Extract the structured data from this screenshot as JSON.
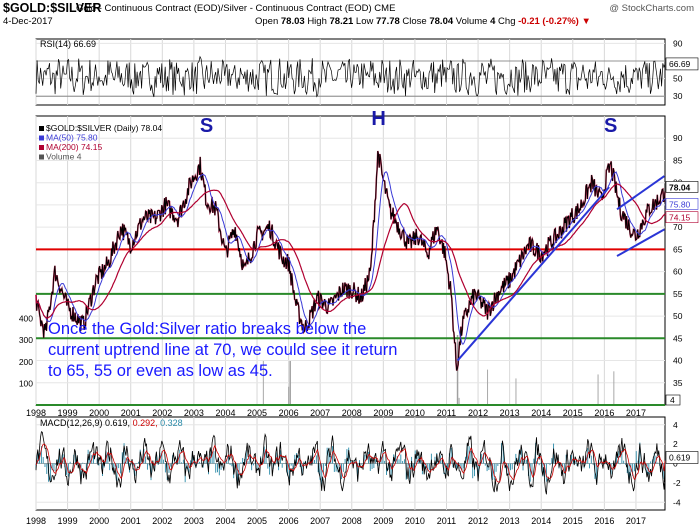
{
  "header": {
    "symbol": "$GOLD:$SILVER",
    "description": "Gold - Continuous Contract (EOD)/Silver - Continuous Contract (EOD) CME",
    "watermark": "@ StockCharts.com",
    "date": "4-Dec-2017",
    "open_label": "Open",
    "open": "78.03",
    "high_label": "High",
    "high": "78.21",
    "low_label": "Low",
    "low": "77.78",
    "close_label": "Close",
    "close": "78.04",
    "volume_label": "Volume",
    "volume": "4",
    "chg_label": "Chg",
    "chg": "-0.21 (-0.27%)",
    "chg_icon": "down-triangle-icon"
  },
  "chart_data": [
    {
      "type": "line",
      "panel": "rsi",
      "legend": "RSI(14) 66.69",
      "current_value_label": "66.69",
      "ylim": [
        20,
        95
      ],
      "yticks": [
        30,
        50,
        70,
        90
      ],
      "reference_lines": [
        30,
        70
      ],
      "series": [
        {
          "name": "RSI(14)",
          "color": "#000000",
          "last": 66.69,
          "x_start": 1998.0,
          "x_end": 2017.92,
          "mean": 52,
          "amplitude": 12
        }
      ]
    },
    {
      "type": "line",
      "panel": "price",
      "legend": [
        {
          "text": "$GOLD:$SILVER (Daily) 78.04",
          "color": "#000000"
        },
        {
          "text": "MA(50) 75.80",
          "color": "#3a3ad6"
        },
        {
          "text": "MA(200) 74.15",
          "color": "#b00030"
        },
        {
          "text": "Volume 4",
          "color": "#555555"
        }
      ],
      "current_value_labels": [
        "78.04",
        "75.80",
        "74.15"
      ],
      "ylim": [
        30,
        95
      ],
      "yticks": [
        35,
        40,
        45,
        50,
        55,
        60,
        65,
        70,
        75,
        80,
        85,
        90
      ],
      "volume_scale_ticks": [
        100,
        200,
        300,
        400
      ],
      "volume_axis_label": "4",
      "x_ticks": [
        "1998",
        "1999",
        "2000",
        "2001",
        "2002",
        "2003",
        "2004",
        "2005",
        "2006",
        "2007",
        "2008",
        "2009",
        "2010",
        "2011",
        "2012",
        "2013",
        "2014",
        "2015",
        "2016",
        "2017"
      ],
      "series": [
        {
          "name": "$GOLD:$SILVER",
          "color": "#000000",
          "x": [
            1998.0,
            1998.1,
            1998.3,
            1998.6,
            1999.0,
            1999.5,
            1999.9,
            2000.3,
            2000.7,
            2001.0,
            2001.4,
            2001.8,
            2002.1,
            2002.5,
            2002.9,
            2003.2,
            2003.4,
            2003.7,
            2004.0,
            2004.3,
            2004.6,
            2005.0,
            2005.4,
            2005.8,
            2006.0,
            2006.25,
            2006.5,
            2006.7,
            2006.9,
            2007.3,
            2007.7,
            2008.0,
            2008.3,
            2008.6,
            2008.83,
            2008.95,
            2009.2,
            2009.5,
            2009.8,
            2010.1,
            2010.4,
            2010.7,
            2010.95,
            2011.15,
            2011.32,
            2011.5,
            2011.7,
            2011.9,
            2012.3,
            2012.7,
            2013.0,
            2013.3,
            2013.6,
            2014.0,
            2014.5,
            2014.9,
            2015.2,
            2015.6,
            2015.9,
            2016.1,
            2016.2,
            2016.5,
            2016.8,
            2017.0,
            2017.4,
            2017.7,
            2017.92
          ],
          "y": [
            54,
            50,
            46,
            60,
            52,
            48,
            58,
            62,
            70,
            66,
            72,
            72,
            75,
            72,
            80,
            84,
            76,
            74,
            64,
            70,
            60,
            68,
            70,
            63,
            62,
            52,
            47,
            50,
            54,
            52,
            56,
            56,
            54,
            60,
            87,
            82,
            74,
            70,
            66,
            68,
            64,
            70,
            64,
            55,
            38,
            48,
            52,
            55,
            51,
            56,
            58,
            62,
            66,
            64,
            68,
            72,
            74,
            80,
            76,
            82,
            84,
            74,
            70,
            68,
            74,
            76,
            78.04
          ]
        },
        {
          "name": "MA(50)",
          "color": "#3a3ad6",
          "last": 75.8
        },
        {
          "name": "MA(200)",
          "color": "#b00030",
          "last": 74.15
        }
      ],
      "reference_lines": [
        {
          "y": 65,
          "color": "#e00000"
        },
        {
          "y": 55,
          "color": "#2a8a2a"
        },
        {
          "y": 45,
          "color": "#2a8a2a"
        },
        {
          "y": 30,
          "color": "#2a8a2a"
        }
      ],
      "trendlines": [
        {
          "x": [
            2011.35,
            2016.15
          ],
          "y": [
            40,
            79
          ],
          "color": "#2a35d6"
        },
        {
          "x": [
            2016.4,
            2017.9
          ],
          "y": [
            74,
            81.5
          ],
          "color": "#2a35d6"
        },
        {
          "x": [
            2016.4,
            2017.9
          ],
          "y": [
            63.5,
            69.5
          ],
          "color": "#2a35d6"
        }
      ],
      "annotations": [
        {
          "text": "S",
          "x": 2003.4,
          "color": "#1a1aa8"
        },
        {
          "text": "H",
          "x": 2008.85,
          "color": "#1a1aa8"
        },
        {
          "text": "S",
          "x": 2016.2,
          "color": "#1a1aa8"
        }
      ],
      "note_lines": [
        "Once the Gold:Silver ratio breaks below the",
        "current uptrend line at 70, we could see it return",
        "to 65, 55 or even as low as 45."
      ],
      "note_color": "#1a1aff"
    },
    {
      "type": "line",
      "panel": "macd",
      "legend_prefix": "MACD(12,26,9)",
      "legend_values": [
        "0.619,",
        "0.292,",
        "0.328"
      ],
      "legend_colors": [
        "#000000",
        "#cc0000",
        "#2a8aa8"
      ],
      "current_value_label": "0.619",
      "ylim": [
        -4.8,
        4.8
      ],
      "yticks": [
        -4,
        -2,
        0,
        2,
        4
      ],
      "x_ticks": [
        "1998",
        "1999",
        "2000",
        "2001",
        "2002",
        "2003",
        "2004",
        "2005",
        "2006",
        "2007",
        "2008",
        "2009",
        "2010",
        "2011",
        "2012",
        "2013",
        "2014",
        "2015",
        "2016",
        "2017"
      ],
      "series": [
        {
          "name": "MACD",
          "color": "#000000",
          "last": 0.619
        },
        {
          "name": "Signal",
          "color": "#cc0000",
          "last": 0.292
        },
        {
          "name": "Histogram",
          "color": "#2a8aa8",
          "last": 0.328
        }
      ]
    }
  ]
}
